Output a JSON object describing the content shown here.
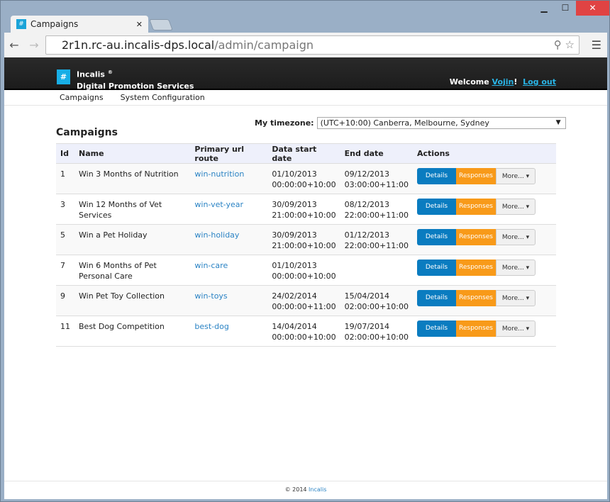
{
  "browser": {
    "tab_title": "Campaigns",
    "url_host": "2r1n.rc-au.incalis-dps.local",
    "url_path": "/admin/campaign"
  },
  "header": {
    "brand": "Incalis",
    "brand_mark": "®",
    "subtitle": "Digital Promotion Services",
    "welcome": "Welcome",
    "user": "Vojin",
    "excl": "!",
    "logout": "Log out"
  },
  "nav": {
    "items": [
      "Campaigns",
      "System Configuration"
    ]
  },
  "timezone": {
    "label": "My timezone:",
    "value": "(UTC+10:00) Canberra, Melbourne, Sydney"
  },
  "title": "Campaigns",
  "table": {
    "headers": [
      "Id",
      "Name",
      "Primary url route",
      "Data start date",
      "End date",
      "Actions"
    ],
    "rows": [
      {
        "id": "1",
        "name": "Win 3 Months of Nutrition",
        "route": "win-nutrition",
        "start": "01/10/2013",
        "start_time": "00:00:00+10:00",
        "end": "09/12/2013",
        "end_time": "03:00:00+11:00"
      },
      {
        "id": "3",
        "name": "Win 12 Months of Vet Services",
        "route": "win-vet-year",
        "start": "30/09/2013",
        "start_time": "21:00:00+10:00",
        "end": "08/12/2013",
        "end_time": "22:00:00+11:00"
      },
      {
        "id": "5",
        "name": "Win a Pet Holiday",
        "route": "win-holiday",
        "start": "30/09/2013",
        "start_time": "21:00:00+10:00",
        "end": "01/12/2013",
        "end_time": "22:00:00+11:00"
      },
      {
        "id": "7",
        "name": "Win 6 Months of Pet Personal Care",
        "route": "win-care",
        "start": "01/10/2013",
        "start_time": "00:00:00+10:00",
        "end": "",
        "end_time": ""
      },
      {
        "id": "9",
        "name": "Win Pet Toy Collection",
        "route": "win-toys",
        "start": "24/02/2014",
        "start_time": "00:00:00+11:00",
        "end": "15/04/2014",
        "end_time": "02:00:00+10:00"
      },
      {
        "id": "11",
        "name": "Best Dog Competition",
        "route": "best-dog",
        "start": "14/04/2014",
        "start_time": "00:00:00+10:00",
        "end": "19/07/2014",
        "end_time": "02:00:00+10:00"
      }
    ],
    "actions": {
      "details": "Details",
      "responses": "Responses",
      "more": "More... ▾"
    }
  },
  "footer": {
    "copy": "© 2014",
    "link": "Incalis"
  }
}
